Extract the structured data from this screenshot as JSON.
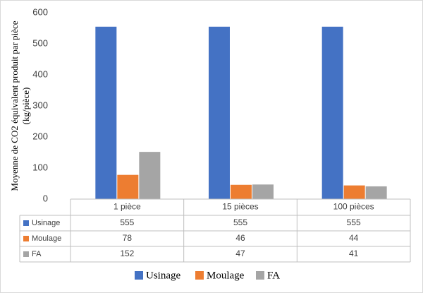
{
  "chart_data": {
    "type": "bar",
    "ylabel": [
      "Moyenne de CO2 équivalent produit par pièce",
      "(kg/pièce)"
    ],
    "categories": [
      "1 pièce",
      "15 pièces",
      "100 pièces"
    ],
    "series": [
      {
        "name": "Usinage",
        "color": "#4472c4",
        "values": [
          555,
          555,
          555
        ]
      },
      {
        "name": "Moulage",
        "color": "#ed7d31",
        "values": [
          78,
          46,
          44
        ]
      },
      {
        "name": "FA",
        "color": "#a5a5a5",
        "values": [
          152,
          47,
          41
        ]
      }
    ],
    "ylim": [
      0,
      600
    ],
    "yticks": [
      0,
      100,
      200,
      300,
      400,
      500,
      600
    ],
    "grid": false,
    "data_table": true,
    "legend": "bottom"
  }
}
